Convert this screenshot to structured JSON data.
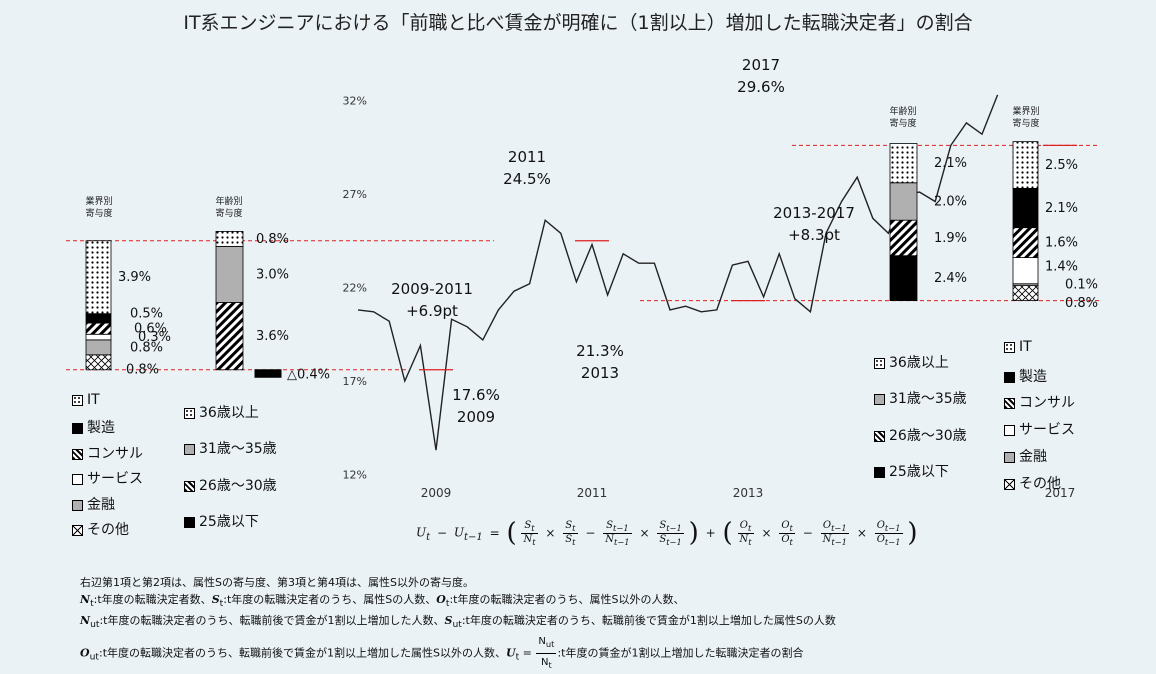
{
  "title": "IT系エンジニアにおける「前職と比べ賃金が明確に（1割以上）増加した転職決定者」の割合",
  "chart_data": {
    "type": "line",
    "ylim": [
      12,
      33
    ],
    "yticks": [
      12,
      17,
      22,
      27,
      32
    ],
    "ytick_labels": [
      "12%",
      "17%",
      "22%",
      "27%",
      "32%"
    ],
    "xtick_labels": [
      {
        "year": 2009,
        "label": "2009"
      },
      {
        "year": 2011,
        "label": "2011"
      },
      {
        "year": 2013,
        "label": "2013"
      },
      {
        "year": 2017,
        "label": "2017"
      }
    ],
    "series": [
      {
        "name": "割合",
        "start": 2008,
        "step": 0.2,
        "values": [
          20.8,
          20.7,
          20.2,
          17.0,
          18.9,
          13.3,
          20.3,
          19.9,
          19.2,
          20.8,
          21.8,
          22.2,
          25.6,
          24.9,
          22.3,
          24.3,
          21.6,
          23.8,
          23.3,
          23.3,
          20.8,
          21.0,
          20.7,
          20.8,
          23.2,
          23.4,
          21.5,
          23.8,
          21.4,
          20.7,
          24.9,
          26.6,
          27.9,
          25.7,
          24.9,
          27.0,
          27.1,
          26.6,
          29.6,
          30.8,
          30.2,
          32.3
        ]
      }
    ],
    "annotations": [
      {
        "id": "a2009",
        "lines": [
          "17.6%",
          "2009"
        ]
      },
      {
        "id": "a2011",
        "lines": [
          "2011",
          "24.5%"
        ]
      },
      {
        "id": "a2013",
        "lines": [
          "21.3%",
          "2013"
        ]
      },
      {
        "id": "a2017",
        "lines": [
          "2017",
          "29.6%"
        ]
      },
      {
        "id": "d0911",
        "lines": [
          "2009-2011",
          "+6.9pt"
        ]
      },
      {
        "id": "d1317",
        "lines": [
          "2013-2017",
          "+8.3pt"
        ]
      }
    ],
    "markers": [
      {
        "year": 2009,
        "value": 17.6
      },
      {
        "year": 2011,
        "value": 24.5
      },
      {
        "year": 2013,
        "value": 21.3
      },
      {
        "year": 2017,
        "value": 29.6
      }
    ],
    "ref_lines": [
      17.6,
      24.5,
      21.3,
      29.6
    ],
    "stacks": [
      {
        "id": "L1",
        "title": [
          "業界別",
          "寄与度"
        ],
        "base": 17.6,
        "top": 24.5,
        "segments": [
          {
            "key": "other",
            "value": 0.8,
            "label": "0.8%"
          },
          {
            "key": "finance",
            "value": 0.8,
            "label": "0.8%"
          },
          {
            "key": "service",
            "value": 0.3,
            "label": "0.3%"
          },
          {
            "key": "consult",
            "value": 0.6,
            "label": "0.6%"
          },
          {
            "key": "mfg",
            "value": 0.5,
            "label": "0.5%"
          },
          {
            "key": "it",
            "value": 3.9,
            "label": "3.9%"
          }
        ]
      },
      {
        "id": "L2",
        "title": [
          "年齢別",
          "寄与度"
        ],
        "base": 17.6,
        "top": 24.5,
        "segments": [
          {
            "key": "a2630",
            "value": 3.6,
            "label": "3.6%"
          },
          {
            "key": "a3135",
            "value": 3.0,
            "label": "3.0%"
          },
          {
            "key": "a36",
            "value": 0.8,
            "label": "0.8%"
          }
        ],
        "negative": {
          "key": "a25",
          "value": -0.4,
          "label": "△0.4%"
        }
      },
      {
        "id": "R1",
        "title": [
          "年齢別",
          "寄与度"
        ],
        "base": 21.3,
        "top": 29.6,
        "segments": [
          {
            "key": "a25",
            "value": 2.4,
            "label": "2.4%"
          },
          {
            "key": "a2630",
            "value": 1.9,
            "label": "1.9%"
          },
          {
            "key": "a3135",
            "value": 2.0,
            "label": "2.0%"
          },
          {
            "key": "a36",
            "value": 2.1,
            "label": "2.1%"
          }
        ]
      },
      {
        "id": "R2",
        "title": [
          "業界別",
          "寄与度"
        ],
        "base": 21.3,
        "top": 29.6,
        "segments": [
          {
            "key": "other",
            "value": 0.8,
            "label": "0.8%"
          },
          {
            "key": "finance",
            "value": 0.1,
            "label": "0.1%"
          },
          {
            "key": "service",
            "value": 1.4,
            "label": "1.4%"
          },
          {
            "key": "consult",
            "value": 1.6,
            "label": "1.6%"
          },
          {
            "key": "mfg",
            "value": 2.1,
            "label": "2.1%"
          },
          {
            "key": "it",
            "value": 2.5,
            "label": "2.5%"
          }
        ]
      }
    ]
  },
  "legend_industry": [
    {
      "key": "it",
      "label": "IT"
    },
    {
      "key": "mfg",
      "label": "製造"
    },
    {
      "key": "consult",
      "label": "コンサル"
    },
    {
      "key": "service",
      "label": "サービス"
    },
    {
      "key": "finance",
      "label": "金融"
    },
    {
      "key": "other",
      "label": "その他"
    }
  ],
  "legend_age": [
    {
      "key": "a36",
      "label": "36歳以上"
    },
    {
      "key": "a3135",
      "label": "31歳～35歳"
    },
    {
      "key": "a2630",
      "label": "26歳～30歳"
    },
    {
      "key": "a25",
      "label": "25歳以下"
    }
  ],
  "formula": {
    "U": "U",
    "N": "N",
    "S": "S",
    "O": "O",
    "t": "t",
    "t1": "t−1",
    "minus": "−",
    "times": "×",
    "plus": "+",
    "eq": "="
  },
  "notes": {
    "line1": "右辺第1項と第2項は、属性Sの寄与度、第3項と第4項は、属性S以外の寄与度。",
    "Nt": "N",
    "Nt_text": ":t年度の転職決定者数、",
    "St": "S",
    "St_text": ":t年度の転職決定者のうち、属性Sの人数、",
    "Ot": "O",
    "Ot_text": ":t年度の転職決定者のうち、属性S以外の人数、",
    "Nut": "N",
    "Nut_text": ":t年度の転職決定者のうち、転職前後で賃金が1割以上増加した人数、",
    "Sut": "S",
    "Sut_text": ":t年度の転職決定者のうち、転職前後で賃金が1割以上増加した属性Sの人数",
    "Out": "O",
    "Out_text": ":t年度の転職決定者のうち、転職前後で賃金が1割以上増加した属性S以外の人数、",
    "Ut": "U",
    "Ut_text": ":t年度の賃金が1割以上増加した転職決定者の割合"
  }
}
